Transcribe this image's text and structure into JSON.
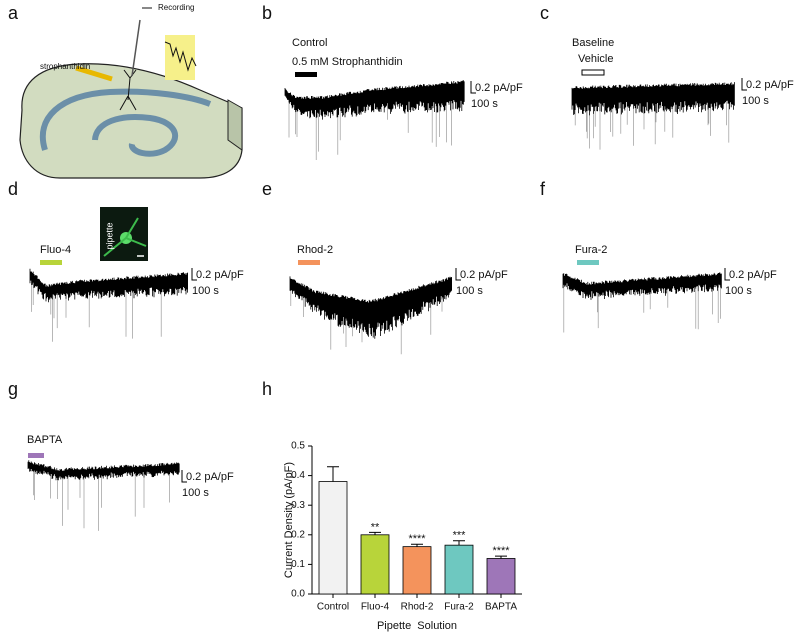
{
  "panels": {
    "a": {
      "letter": "a",
      "recording": "Recording",
      "drug": "strophanthidin"
    },
    "b": {
      "letter": "b",
      "condition": "Control",
      "treatment": "0.5 mM Strophanthidin",
      "scale_y": "0.2 pA/pF",
      "scale_x": "100 s"
    },
    "c": {
      "letter": "c",
      "condition": "Baseline",
      "treatment": "Vehicle",
      "scale_y": "0.2 pA/pF",
      "scale_x": "100 s"
    },
    "d": {
      "letter": "d",
      "treatment": "Fluo-4",
      "image_label": "pipette",
      "scale_y": "0.2 pA/pF",
      "scale_x": "100 s"
    },
    "e": {
      "letter": "e",
      "treatment": "Rhod-2",
      "scale_y": "0.2 pA/pF",
      "scale_x": "100 s"
    },
    "f": {
      "letter": "f",
      "treatment": "Fura-2",
      "scale_y": "0.2 pA/pF",
      "scale_x": "100 s"
    },
    "g": {
      "letter": "g",
      "treatment": "BAPTA",
      "scale_y": "0.2 pA/pF",
      "scale_x": "100 s"
    },
    "h": {
      "letter": "h"
    }
  },
  "chart_data": {
    "type": "bar",
    "categories": [
      "Control",
      "Fluo-4",
      "Rhod-2",
      "Fura-2",
      "BAPTA"
    ],
    "values": [
      0.38,
      0.2,
      0.16,
      0.165,
      0.12
    ],
    "errors": [
      0.05,
      0.008,
      0.008,
      0.015,
      0.008
    ],
    "colors": [
      "#f2f2f2",
      "#b8d43a",
      "#f4935c",
      "#6ec8c0",
      "#9e76b8"
    ],
    "significance": [
      null,
      "**",
      "****",
      "***",
      "****"
    ],
    "y_label": "Current Density (pA/pF)",
    "x_label": "Pipette  Solution",
    "ylim": [
      0,
      0.5
    ],
    "yticks": [
      {
        "value": 0,
        "label": "0.0"
      },
      0.1,
      0.2,
      0.3,
      0.4,
      0.5
    ]
  }
}
